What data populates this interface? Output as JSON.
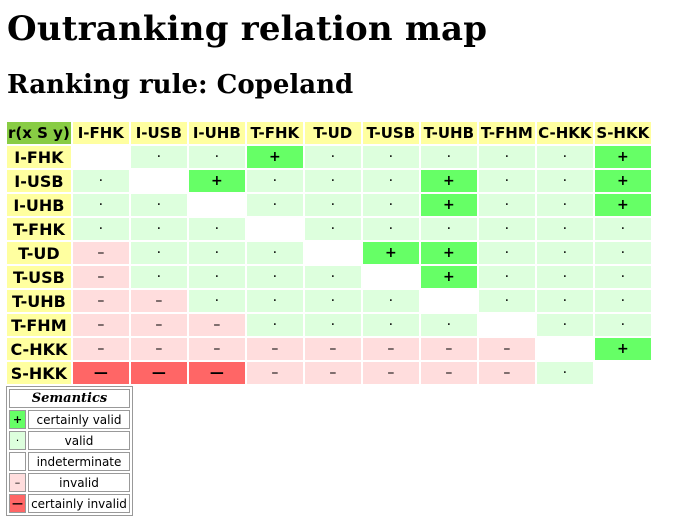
{
  "title": "Outranking relation map",
  "subtitle": "Ranking rule: Copeland",
  "corner": "r(x S y)",
  "columns": [
    "I-FHK",
    "I-USB",
    "I-UHB",
    "T-FHK",
    "T-UD",
    "T-USB",
    "T-UHB",
    "T-FHM",
    "C-HKK",
    "S-HKK"
  ],
  "rows": [
    {
      "label": "I-FHK",
      "cells": [
        "ind",
        "v",
        "v",
        "cv",
        "v",
        "v",
        "v",
        "v",
        "v",
        "cv"
      ]
    },
    {
      "label": "I-USB",
      "cells": [
        "v",
        "ind",
        "cv",
        "v",
        "v",
        "v",
        "cv",
        "v",
        "v",
        "cv"
      ]
    },
    {
      "label": "I-UHB",
      "cells": [
        "v",
        "v",
        "ind",
        "v",
        "v",
        "v",
        "cv",
        "v",
        "v",
        "cv"
      ]
    },
    {
      "label": "T-FHK",
      "cells": [
        "v",
        "v",
        "v",
        "ind",
        "v",
        "v",
        "v",
        "v",
        "v",
        "v"
      ]
    },
    {
      "label": "T-UD",
      "cells": [
        "iv",
        "v",
        "v",
        "v",
        "ind",
        "cv",
        "cv",
        "v",
        "v",
        "v"
      ]
    },
    {
      "label": "T-USB",
      "cells": [
        "iv",
        "v",
        "v",
        "v",
        "v",
        "ind",
        "cv",
        "v",
        "v",
        "v"
      ]
    },
    {
      "label": "T-UHB",
      "cells": [
        "iv",
        "iv",
        "v",
        "v",
        "v",
        "v",
        "ind",
        "v",
        "v",
        "v"
      ]
    },
    {
      "label": "T-FHM",
      "cells": [
        "iv",
        "iv",
        "iv",
        "v",
        "v",
        "v",
        "v",
        "ind",
        "v",
        "v"
      ]
    },
    {
      "label": "C-HKK",
      "cells": [
        "iv",
        "iv",
        "iv",
        "iv",
        "iv",
        "iv",
        "iv",
        "iv",
        "ind",
        "cv"
      ]
    },
    {
      "label": "S-HKK",
      "cells": [
        "ci",
        "ci",
        "ci",
        "iv",
        "iv",
        "iv",
        "iv",
        "iv",
        "v",
        "ind"
      ]
    }
  ],
  "symbols": {
    "cv": "+",
    "v": "·",
    "ind": "",
    "iv": "–",
    "ci": "—"
  },
  "legend": {
    "title": "Semantics",
    "items": [
      {
        "key": "cv",
        "symbol": "+",
        "label": "certainly valid"
      },
      {
        "key": "v",
        "symbol": "·",
        "label": "valid"
      },
      {
        "key": "ind",
        "symbol": "",
        "label": "indeterminate"
      },
      {
        "key": "iv",
        "symbol": "–",
        "label": "invalid"
      },
      {
        "key": "ci",
        "symbol": "—",
        "label": "certainly invalid"
      }
    ]
  },
  "colors": {
    "certainly_valid": "#66ff66",
    "valid": "#ddffdd",
    "indeterminate": "#ffffff",
    "invalid": "#ffdddd",
    "certainly_invalid": "#ff6666",
    "header": "#ffffa0",
    "corner": "#88cc44"
  }
}
